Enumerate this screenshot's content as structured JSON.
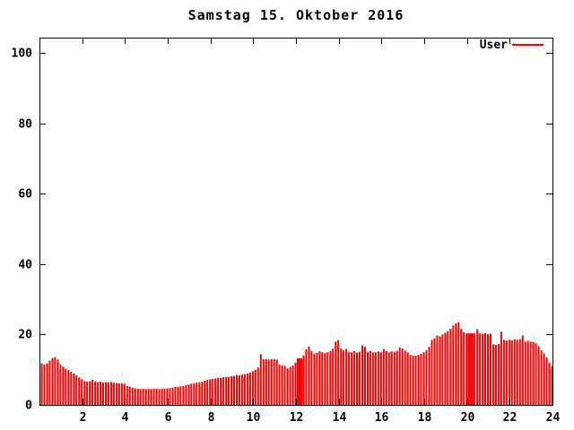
{
  "page": {
    "background": "#ffffff"
  },
  "chart_data": {
    "type": "bar",
    "style": "impulses",
    "title": "Samstag 15. Oktober 2016",
    "xlabel": "",
    "ylabel": "",
    "xlim": [
      0,
      24
    ],
    "ylim": [
      0,
      105
    ],
    "x_ticks": [
      2,
      4,
      6,
      8,
      10,
      12,
      14,
      16,
      18,
      20,
      22,
      24
    ],
    "y_ticks": [
      0,
      20,
      40,
      60,
      80,
      100
    ],
    "grid": false,
    "axis_color": "#000000",
    "legend": {
      "position": "top-right-inside",
      "entries": [
        {
          "label": "User",
          "color": "#ff0000"
        }
      ]
    },
    "x_unit": "hour of day",
    "x_step_hours": 0.125,
    "merged_bar_indices": [
      96,
      97,
      160,
      161
    ],
    "series": [
      {
        "name": "User",
        "color": "#ff0000",
        "values": [
          11.8,
          11.5,
          11.8,
          12.6,
          13.3,
          13.6,
          12.9,
          11.5,
          10.9,
          10.3,
          9.9,
          9.4,
          8.9,
          8.4,
          7.8,
          7.3,
          6.8,
          6.6,
          6.7,
          7.2,
          6.7,
          6.5,
          6.6,
          6.4,
          6.5,
          6.4,
          6.5,
          6.3,
          6.2,
          6.1,
          6.1,
          6.0,
          5.4,
          5.2,
          4.9,
          4.7,
          4.6,
          4.5,
          4.6,
          4.5,
          4.6,
          4.5,
          4.6,
          4.6,
          4.5,
          4.6,
          4.6,
          4.7,
          4.8,
          4.9,
          5.1,
          5.2,
          5.3,
          5.4,
          5.6,
          5.8,
          6.0,
          6.1,
          6.3,
          6.4,
          6.6,
          6.9,
          7.1,
          7.3,
          7.4,
          7.5,
          7.7,
          7.7,
          7.9,
          8.0,
          8.0,
          8.2,
          8.3,
          8.5,
          8.4,
          8.6,
          8.7,
          8.9,
          9.2,
          9.6,
          10.0,
          10.6,
          14.4,
          13.0,
          13.0,
          12.9,
          13.0,
          13.0,
          12.9,
          11.5,
          11.2,
          11.1,
          10.4,
          10.8,
          11.2,
          12.0,
          13.2,
          13.2,
          14.1,
          15.8,
          16.6,
          15.3,
          14.5,
          14.8,
          15.2,
          15.0,
          14.7,
          15.0,
          15.3,
          16.0,
          18.0,
          18.4,
          16.0,
          15.5,
          15.9,
          15.1,
          15.0,
          15.3,
          14.9,
          15.1,
          16.9,
          16.5,
          15.1,
          15.3,
          14.9,
          15.0,
          15.2,
          15.0,
          15.9,
          15.3,
          15.0,
          15.2,
          15.1,
          15.4,
          16.3,
          16.0,
          15.4,
          15.0,
          14.2,
          14.0,
          14.0,
          14.2,
          14.5,
          15.0,
          15.5,
          16.5,
          18.5,
          18.9,
          19.7,
          19.5,
          20.0,
          20.5,
          21.0,
          21.6,
          22.6,
          23.2,
          23.5,
          21.6,
          20.6,
          20.4,
          20.3,
          20.3,
          20.4,
          21.5,
          20.3,
          20.2,
          20.4,
          20.1,
          20.2,
          17.2,
          17.0,
          17.3,
          20.8,
          18.5,
          18.3,
          18.5,
          18.4,
          18.6,
          18.5,
          18.7,
          19.7,
          18.0,
          18.2,
          18.0,
          17.8,
          17.5,
          16.7,
          15.5,
          14.6,
          13.5,
          12.0,
          11.0
        ]
      }
    ]
  }
}
